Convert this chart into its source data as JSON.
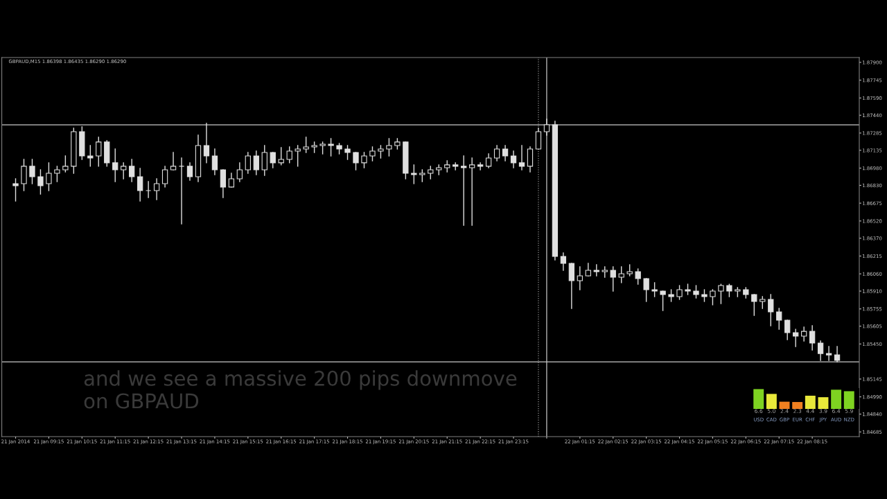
{
  "chart_data": [
    {
      "type": "candlestick",
      "title": "GBPAUD,M15 1.86398 1.86435 1.86290 1.86290",
      "color": "#e0e0e0",
      "x": [
        "2014-01-21T08:15",
        "2014-01-21T08:30",
        "2014-01-21T08:45",
        "2014-01-21T09:00",
        "2014-01-21T09:15",
        "2014-01-21T09:30",
        "2014-01-21T09:45",
        "2014-01-21T10:00",
        "2014-01-21T10:15",
        "2014-01-21T10:30",
        "2014-01-21T10:45",
        "2014-01-21T11:00",
        "2014-01-21T11:15",
        "2014-01-21T11:30",
        "2014-01-21T11:45",
        "2014-01-21T12:00",
        "2014-01-21T12:15",
        "2014-01-21T12:30",
        "2014-01-21T12:45",
        "2014-01-21T13:00",
        "2014-01-21T13:15",
        "2014-01-21T13:30",
        "2014-01-21T13:45",
        "2014-01-21T14:00",
        "2014-01-21T14:15",
        "2014-01-21T14:30",
        "2014-01-21T14:45",
        "2014-01-21T15:00",
        "2014-01-21T15:15",
        "2014-01-21T15:30",
        "2014-01-21T15:45",
        "2014-01-21T16:00",
        "2014-01-21T16:15",
        "2014-01-21T16:30",
        "2014-01-21T16:45",
        "2014-01-21T17:00",
        "2014-01-21T17:15",
        "2014-01-21T17:30",
        "2014-01-21T17:45",
        "2014-01-21T18:00",
        "2014-01-21T18:15",
        "2014-01-21T18:30",
        "2014-01-21T18:45",
        "2014-01-21T19:00",
        "2014-01-21T19:15",
        "2014-01-21T19:30",
        "2014-01-21T19:45",
        "2014-01-21T20:00",
        "2014-01-21T20:15",
        "2014-01-21T20:30",
        "2014-01-21T20:45",
        "2014-01-21T21:00",
        "2014-01-21T21:15",
        "2014-01-21T21:30",
        "2014-01-21T21:45",
        "2014-01-21T22:00",
        "2014-01-21T22:15",
        "2014-01-21T22:30",
        "2014-01-21T22:45",
        "2014-01-21T23:00",
        "2014-01-21T23:15",
        "2014-01-21T23:30",
        "2014-01-21T23:45",
        "2014-01-22T00:00",
        "2014-01-22T00:15",
        "2014-01-22T00:30",
        "2014-01-22T00:45",
        "2014-01-22T01:00",
        "2014-01-22T01:15",
        "2014-01-22T01:30",
        "2014-01-22T01:45",
        "2014-01-22T02:00",
        "2014-01-22T02:15",
        "2014-01-22T02:30",
        "2014-01-22T02:45",
        "2014-01-22T03:00",
        "2014-01-22T03:15",
        "2014-01-22T03:30",
        "2014-01-22T03:45",
        "2014-01-22T04:00",
        "2014-01-22T04:15",
        "2014-01-22T04:30",
        "2014-01-22T04:45",
        "2014-01-22T05:00",
        "2014-01-22T05:15",
        "2014-01-22T05:30",
        "2014-01-22T05:45",
        "2014-01-22T06:00",
        "2014-01-22T06:15",
        "2014-01-22T06:30",
        "2014-01-22T06:45",
        "2014-01-22T07:00",
        "2014-01-22T07:15",
        "2014-01-22T07:30",
        "2014-01-22T07:45",
        "2014-01-22T08:00",
        "2014-01-22T08:15",
        "2014-01-22T08:30",
        "2014-01-22T08:45",
        "2014-01-22T09:00"
      ],
      "ohlc": [
        [
          1.86845,
          1.86887,
          1.86694,
          1.86827
        ],
        [
          1.86845,
          1.87056,
          1.86784,
          1.86996
        ],
        [
          1.86996,
          1.87056,
          1.86845,
          1.86905
        ],
        [
          1.86905,
          1.86965,
          1.86754,
          1.86827
        ],
        [
          1.86845,
          1.87026,
          1.86784,
          1.86935
        ],
        [
          1.86935,
          1.86996,
          1.86863,
          1.86965
        ],
        [
          1.86965,
          1.87086,
          1.86947,
          1.86996
        ],
        [
          1.86996,
          1.87327,
          1.86935,
          1.87297
        ],
        [
          1.87297,
          1.87339,
          1.87056,
          1.87086
        ],
        [
          1.87086,
          1.87176,
          1.86996,
          1.87068
        ],
        [
          1.87086,
          1.87249,
          1.86996,
          1.87207
        ],
        [
          1.87207,
          1.87219,
          1.86996,
          1.87026
        ],
        [
          1.87026,
          1.87146,
          1.86863,
          1.86965
        ],
        [
          1.86965,
          1.87026,
          1.86887,
          1.86996
        ],
        [
          1.86996,
          1.87056,
          1.86863,
          1.86905
        ],
        [
          1.86905,
          1.86977,
          1.86694,
          1.86784
        ],
        [
          1.86784,
          1.86863,
          1.86724,
          1.86784
        ],
        [
          1.86784,
          1.86887,
          1.86706,
          1.86845
        ],
        [
          1.86845,
          1.86996,
          1.86815,
          1.86965
        ],
        [
          1.86965,
          1.87116,
          1.86965,
          1.86996
        ],
        [
          1.86996,
          1.87068,
          1.86495,
          1.86996
        ],
        [
          1.86996,
          1.87026,
          1.86875,
          1.86905
        ],
        [
          1.86905,
          1.87267,
          1.86863,
          1.87176
        ],
        [
          1.87176,
          1.87369,
          1.87026,
          1.87086
        ],
        [
          1.87086,
          1.87146,
          1.86923,
          1.86965
        ],
        [
          1.86965,
          1.86965,
          1.86724,
          1.86815
        ],
        [
          1.86815,
          1.86935,
          1.86815,
          1.86887
        ],
        [
          1.86887,
          1.87026,
          1.86863,
          1.86965
        ],
        [
          1.86965,
          1.87116,
          1.86935,
          1.87086
        ],
        [
          1.87086,
          1.87128,
          1.86923,
          1.86965
        ],
        [
          1.86965,
          1.87176,
          1.86917,
          1.87116
        ],
        [
          1.87116,
          1.87116,
          1.86983,
          1.87026
        ],
        [
          1.87026,
          1.87158,
          1.87008,
          1.87056
        ],
        [
          1.87056,
          1.87164,
          1.87026,
          1.87128
        ],
        [
          1.87128,
          1.87176,
          1.86996,
          1.87146
        ],
        [
          1.87146,
          1.87249,
          1.87116,
          1.87164
        ],
        [
          1.87164,
          1.87207,
          1.87116,
          1.87176
        ],
        [
          1.87176,
          1.87207,
          1.87104,
          1.87188
        ],
        [
          1.87188,
          1.87237,
          1.87086,
          1.87176
        ],
        [
          1.87176,
          1.87195,
          1.87104,
          1.87146
        ],
        [
          1.87146,
          1.87176,
          1.87056,
          1.87116
        ],
        [
          1.87116,
          1.87116,
          1.86965,
          1.87026
        ],
        [
          1.87026,
          1.87116,
          1.86983,
          1.87086
        ],
        [
          1.87086,
          1.87164,
          1.87044,
          1.87128
        ],
        [
          1.87128,
          1.87176,
          1.87068,
          1.87146
        ],
        [
          1.87146,
          1.87237,
          1.87086,
          1.87176
        ],
        [
          1.87176,
          1.87237,
          1.87146,
          1.87207
        ],
        [
          1.87207,
          1.87207,
          1.86887,
          1.86935
        ],
        [
          1.86935,
          1.87008,
          1.86845,
          1.86923
        ],
        [
          1.86923,
          1.86965,
          1.86863,
          1.86935
        ],
        [
          1.86935,
          1.86996,
          1.86887,
          1.86965
        ],
        [
          1.86965,
          1.87008,
          1.86923,
          1.86983
        ],
        [
          1.86983,
          1.87044,
          1.86947,
          1.87008
        ],
        [
          1.87008,
          1.87026,
          1.86965,
          1.86996
        ],
        [
          1.86996,
          1.87086,
          1.86483,
          1.86983
        ],
        [
          1.86983,
          1.87068,
          1.86483,
          1.87008
        ],
        [
          1.87008,
          1.87026,
          1.86965,
          1.86996
        ],
        [
          1.86996,
          1.87104,
          1.86983,
          1.87068
        ],
        [
          1.87068,
          1.87176,
          1.87044,
          1.87146
        ],
        [
          1.87146,
          1.87176,
          1.87044,
          1.87086
        ],
        [
          1.87086,
          1.87128,
          1.86983,
          1.87026
        ],
        [
          1.87026,
          1.87176,
          1.86965,
          1.86996
        ],
        [
          1.86996,
          1.87164,
          1.86947,
          1.87146
        ],
        [
          1.87146,
          1.87327,
          1.87146,
          1.87297
        ],
        [
          1.87297,
          1.87406,
          1.87267,
          1.87357
        ],
        [
          1.87357,
          1.87387,
          1.86181,
          1.86212
        ],
        [
          1.86212,
          1.86242,
          1.86091,
          1.86151
        ],
        [
          1.86151,
          1.86151,
          1.85759,
          1.86001
        ],
        [
          1.86001,
          1.86121,
          1.85922,
          1.86043
        ],
        [
          1.86043,
          1.86151,
          1.86043,
          1.86091
        ],
        [
          1.86091,
          1.86139,
          1.86043,
          1.86079
        ],
        [
          1.86079,
          1.86121,
          1.86031,
          1.86091
        ],
        [
          1.86091,
          1.86121,
          1.8591,
          1.86031
        ],
        [
          1.86031,
          1.86121,
          1.85983,
          1.86061
        ],
        [
          1.86061,
          1.86139,
          1.86043,
          1.86079
        ],
        [
          1.86079,
          1.86103,
          1.8597,
          1.86019
        ],
        [
          1.86019,
          1.86019,
          1.8582,
          1.85922
        ],
        [
          1.85922,
          1.85983,
          1.85862,
          1.8591
        ],
        [
          1.8591,
          1.8591,
          1.85741,
          1.8588
        ],
        [
          1.8588,
          1.85922,
          1.8582,
          1.85862
        ],
        [
          1.85862,
          1.85958,
          1.85838,
          1.85922
        ],
        [
          1.85922,
          1.8597,
          1.8588,
          1.8591
        ],
        [
          1.8591,
          1.85958,
          1.8585,
          1.8588
        ],
        [
          1.8588,
          1.85922,
          1.8582,
          1.85862
        ],
        [
          1.85862,
          1.85922,
          1.8579,
          1.8591
        ],
        [
          1.8591,
          1.8597,
          1.85802,
          1.85958
        ],
        [
          1.85958,
          1.8597,
          1.85862,
          1.8591
        ],
        [
          1.8591,
          1.8594,
          1.85862,
          1.85922
        ],
        [
          1.85922,
          1.8594,
          1.8585,
          1.8588
        ],
        [
          1.8588,
          1.8588,
          1.85699,
          1.8582
        ],
        [
          1.8582,
          1.85862,
          1.85759,
          1.85838
        ],
        [
          1.85838,
          1.8588,
          1.85609,
          1.85729
        ],
        [
          1.85729,
          1.85759,
          1.85578,
          1.85657
        ],
        [
          1.85657,
          1.85657,
          1.85488,
          1.85548
        ],
        [
          1.85548,
          1.85578,
          1.85428,
          1.85518
        ],
        [
          1.85518,
          1.85597,
          1.85476,
          1.8556
        ],
        [
          1.8556,
          1.85609,
          1.85398,
          1.85458
        ],
        [
          1.85458,
          1.85476,
          1.85307,
          1.85367
        ],
        [
          1.85367,
          1.85428,
          1.85307,
          1.85355
        ],
        [
          1.85355,
          1.85428,
          1.85295,
          1.85307
        ]
      ],
      "xlim": [
        "2014-01-21T07:50",
        "2014-01-22T09:40"
      ],
      "xticks": [
        {
          "value": "2014-01-21T08:15",
          "label": "21 Jan 2014"
        },
        {
          "value": "2014-01-21T09:15",
          "label": "21 Jan 09:15"
        },
        {
          "value": "2014-01-21T10:15",
          "label": "21 Jan 10:15"
        },
        {
          "value": "2014-01-21T11:15",
          "label": "21 Jan 11:15"
        },
        {
          "value": "2014-01-21T12:15",
          "label": "21 Jan 12:15"
        },
        {
          "value": "2014-01-21T13:15",
          "label": "21 Jan 13:15"
        },
        {
          "value": "2014-01-21T14:15",
          "label": "21 Jan 14:15"
        },
        {
          "value": "2014-01-21T15:15",
          "label": "21 Jan 15:15"
        },
        {
          "value": "2014-01-21T16:15",
          "label": "21 Jan 16:15"
        },
        {
          "value": "2014-01-21T17:15",
          "label": "21 Jan 17:15"
        },
        {
          "value": "2014-01-21T18:15",
          "label": "21 Jan 18:15"
        },
        {
          "value": "2014-01-21T19:15",
          "label": "21 Jan 19:15"
        },
        {
          "value": "2014-01-21T20:15",
          "label": "21 Jan 20:15"
        },
        {
          "value": "2014-01-21T21:15",
          "label": "21 Jan 21:15"
        },
        {
          "value": "2014-01-21T22:15",
          "label": "21 Jan 22:15"
        },
        {
          "value": "2014-01-21T23:15",
          "label": "21 Jan 23:15"
        },
        {
          "value": "2014-01-22T00:15",
          "label": null
        },
        {
          "value": "2014-01-22T01:15",
          "label": "22 Jan 01:15"
        },
        {
          "value": "2014-01-22T02:15",
          "label": "22 Jan 02:15"
        },
        {
          "value": "2014-01-22T03:15",
          "label": "22 Jan 03:15"
        },
        {
          "value": "2014-01-22T04:15",
          "label": "22 Jan 04:15"
        },
        {
          "value": "2014-01-22T05:15",
          "label": "22 Jan 05:15"
        },
        {
          "value": "2014-01-22T06:15",
          "label": "22 Jan 06:15"
        },
        {
          "value": "2014-01-22T07:15",
          "label": "22 Jan 07:15"
        },
        {
          "value": "2014-01-22T08:15",
          "label": "22 Jan 08:15"
        }
      ],
      "ylim": [
        1.84644,
        1.87942
      ],
      "yticks": [
        {
          "value": 1.879,
          "label": "1.87900"
        },
        {
          "value": 1.87745,
          "label": "1.87745"
        },
        {
          "value": 1.8759,
          "label": "1.87590"
        },
        {
          "value": 1.8744,
          "label": "1.87440"
        },
        {
          "value": 1.87285,
          "label": "1.87285"
        },
        {
          "value": 1.87135,
          "label": "1.87135"
        },
        {
          "value": 1.8698,
          "label": "1.86980"
        },
        {
          "value": 1.8683,
          "label": "1.86830"
        },
        {
          "value": 1.86675,
          "label": "1.86675"
        },
        {
          "value": 1.8652,
          "label": "1.86520"
        },
        {
          "value": 1.8637,
          "label": "1.86370"
        },
        {
          "value": 1.86215,
          "label": "1.86215"
        },
        {
          "value": 1.8606,
          "label": "1.86060"
        },
        {
          "value": 1.8591,
          "label": "1.85910"
        },
        {
          "value": 1.85755,
          "label": "1.85755"
        },
        {
          "value": 1.85605,
          "label": "1.85605"
        },
        {
          "value": 1.8545,
          "label": "1.85450"
        },
        {
          "value": 1.85145,
          "label": "1.85145"
        },
        {
          "value": 1.8499,
          "label": "1.84990"
        },
        {
          "value": 1.8484,
          "label": "1.84840"
        },
        {
          "value": 1.84685,
          "label": "1.84685"
        }
      ],
      "ref_lines": [
        {
          "axis": "y",
          "value": 1.87357,
          "color": "#c8c8c8",
          "line_style": "solid"
        },
        {
          "axis": "y",
          "value": 1.85295,
          "color": "#c8c8c8",
          "line_style": "solid"
        },
        {
          "axis": "x",
          "value": "2014-01-22T00:00",
          "color": "#909090",
          "line_style": "dotted"
        },
        {
          "axis": "x",
          "value": "2014-01-22T00:15",
          "color": "#c8c8c8",
          "line_style": "solid"
        }
      ],
      "annotations": [
        "and we see a massive 200 pips downmove on GBPAUD"
      ]
    },
    {
      "type": "bar",
      "categories": [
        "USD",
        "CAD",
        "GBP",
        "EUR",
        "CHF",
        "JPY",
        "AUD",
        "NZD"
      ],
      "values": [
        6.6,
        5.0,
        2.4,
        2.3,
        4.4,
        3.9,
        6.4,
        5.9
      ],
      "colors": [
        "#7ed321",
        "#e8e83a",
        "#f08020",
        "#f08020",
        "#e8e83a",
        "#e8e83a",
        "#7ed321",
        "#7ed321"
      ],
      "value_labels": [
        "6.6",
        "5.0",
        "2.4",
        "2.3",
        "4.4",
        "3.9",
        "6.4",
        "5.9"
      ]
    }
  ]
}
